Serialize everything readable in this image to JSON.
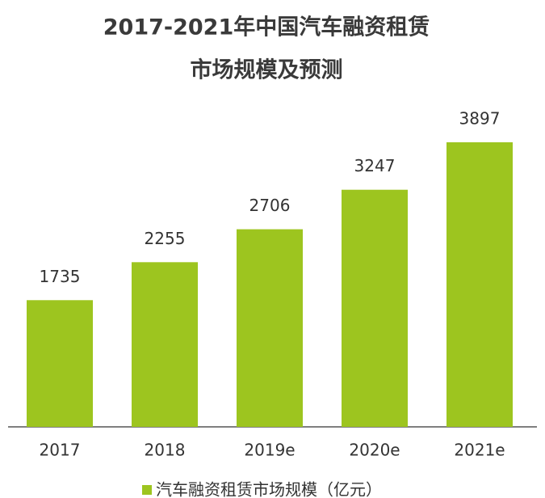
{
  "chart_data": {
    "type": "bar",
    "title": [
      "2017-2021年中国汽车融资租赁",
      "市场规模及预测"
    ],
    "categories": [
      "2017",
      "2018",
      "2019e",
      "2020e",
      "2021e"
    ],
    "series": [
      {
        "name": "汽车融资租赁市场规模（亿元）",
        "color": "#9dc51f",
        "values": [
          1735,
          2255,
          2706,
          3247,
          3897
        ]
      }
    ],
    "legend": "bottom"
  }
}
